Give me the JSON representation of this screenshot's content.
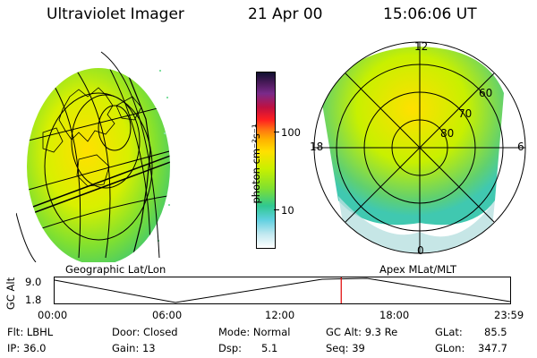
{
  "header": {
    "instrument": "Ultraviolet Imager",
    "date": "21 Apr 00",
    "time": "15:06:06 UT"
  },
  "left_panel": {
    "caption": "Geographic Lat/Lon"
  },
  "right_panel": {
    "caption": "Apex MLat/MLT",
    "mlt_labels": {
      "top": "12",
      "right": "6",
      "bottom": "0",
      "left": "18"
    },
    "lat_labels": [
      "60",
      "70",
      "80"
    ]
  },
  "colorbar": {
    "unit_label": "photon cm⁻²s⁻¹",
    "ticks": [
      "100",
      "10"
    ],
    "colors": [
      "#101030",
      "#4a1a5a",
      "#7a2a8a",
      "#c01040",
      "#ff2020",
      "#ff7a10",
      "#ffb000",
      "#ffe000",
      "#c8f000",
      "#80e030",
      "#30c890",
      "#60d0e0",
      "#c0e8f0",
      "#ffffff"
    ]
  },
  "altitude_plot": {
    "ylabel": "GC Alt",
    "yticks": [
      "9.0",
      "1.8"
    ],
    "xticks": [
      "00:00",
      "06:00",
      "12:00",
      "18:00",
      "23:59"
    ],
    "current_time_hours": 15.1,
    "marker_color": "#e00000"
  },
  "status": {
    "filter": "Flt: LBHL",
    "door": "Door: Closed",
    "mode": "Mode: Normal",
    "gc_alt": "GC Alt: 9.3 Re",
    "glat_label": "GLat:",
    "glat_value": "85.5",
    "ip": "IP: 36.0",
    "gain": "Gain: 13",
    "dsp_label": "Dsp:",
    "dsp_value": "5.1",
    "seq": "Seq: 39",
    "glon_label": "GLon:",
    "glon_value": "347.7"
  }
}
